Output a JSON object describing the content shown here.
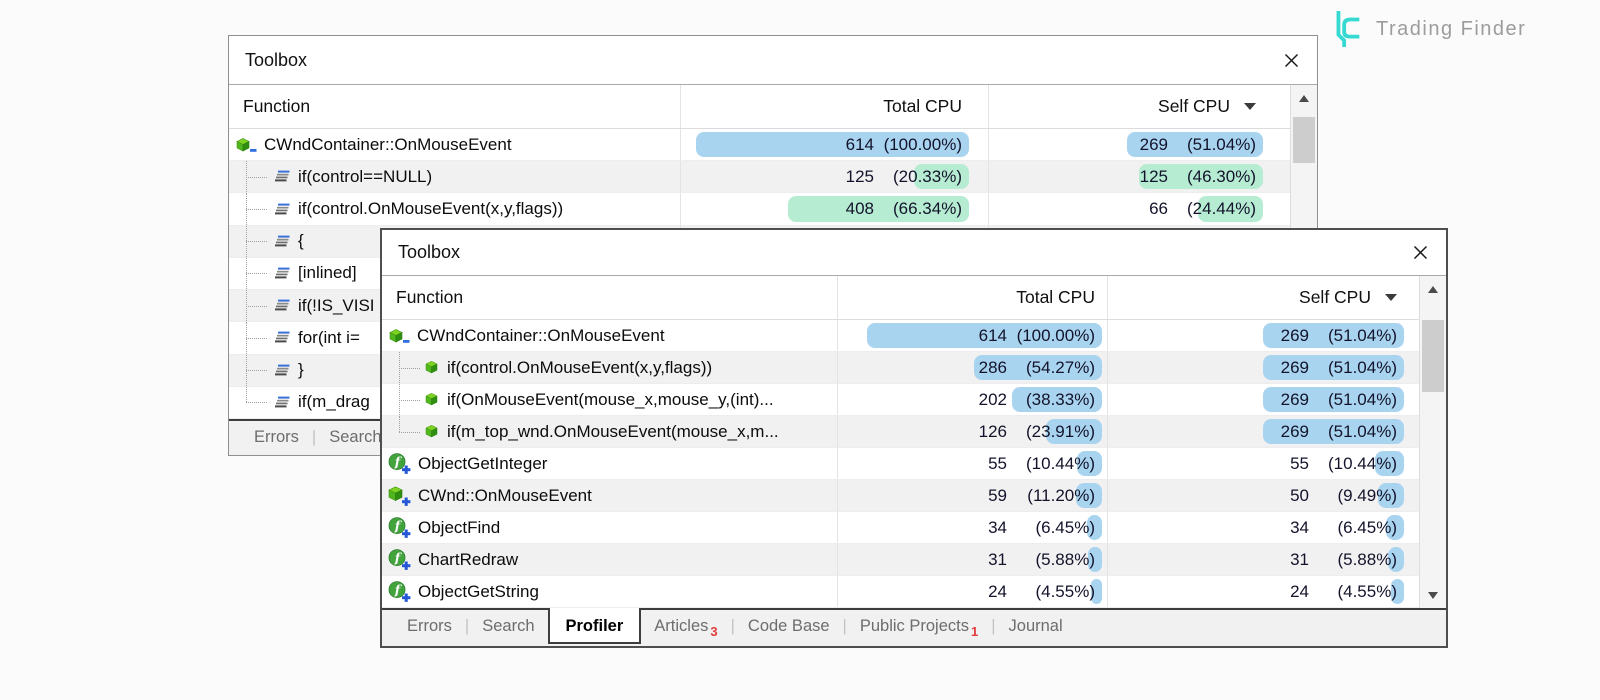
{
  "brand": {
    "name": "Trading Finder",
    "color": "#35d9d2"
  },
  "colors": {
    "bar_blue": "#a9d4ef",
    "bar_green": "#b5ecd2",
    "badge_red": "#e23b3b"
  },
  "windows": {
    "back": {
      "title": "Toolbox",
      "columns": {
        "function": "Function",
        "total_cpu": "Total CPU",
        "self_cpu": "Self CPU"
      },
      "sorted_by": "self_cpu",
      "rows": [
        {
          "icon": "class-cube",
          "label": "CWndContainer::OnMouseEvent",
          "total": {
            "count": "614",
            "pct_text": "(100.00%)",
            "pct": 100,
            "color": "blue"
          },
          "self": {
            "count": "269",
            "pct_text": "(51.04%)",
            "pct": 51.04,
            "color": "blue"
          }
        },
        {
          "icon": "code-lines",
          "child": true,
          "label": "if(control==NULL)",
          "total": {
            "count": "125",
            "pct_text": "(20.33%)",
            "pct": 20.33,
            "color": "green"
          },
          "self": {
            "count": "125",
            "pct_text": "(46.30%)",
            "pct": 46.3,
            "color": "green"
          }
        },
        {
          "icon": "code-lines",
          "child": true,
          "label": "if(control.OnMouseEvent(x,y,flags))",
          "total": {
            "count": "408",
            "pct_text": "(66.34%)",
            "pct": 66.34,
            "color": "green"
          },
          "self": {
            "count": "66",
            "pct_text": "(24.44%)",
            "pct": 24.44,
            "color": "green"
          }
        },
        {
          "icon": "code-lines",
          "child": true,
          "label": "{"
        },
        {
          "icon": "code-lines",
          "child": true,
          "label": "[inlined]"
        },
        {
          "icon": "code-lines",
          "child": true,
          "label": "if(!IS_VISI"
        },
        {
          "icon": "code-lines",
          "child": true,
          "label": "for(int i="
        },
        {
          "icon": "code-lines",
          "child": true,
          "label": "}"
        },
        {
          "icon": "code-lines",
          "child": true,
          "last": true,
          "label": "if(m_drag"
        }
      ],
      "tabs": [
        {
          "label": "Errors"
        },
        {
          "label": "Search"
        }
      ]
    },
    "front": {
      "title": "Toolbox",
      "columns": {
        "function": "Function",
        "total_cpu": "Total CPU",
        "self_cpu": "Self CPU"
      },
      "sorted_by": "self_cpu",
      "rows": [
        {
          "icon": "class-cube",
          "label": "CWndContainer::OnMouseEvent",
          "total": {
            "count": "614",
            "pct_text": "(100.00%)",
            "pct": 100,
            "color": "blue"
          },
          "self": {
            "count": "269",
            "pct_text": "(51.04%)",
            "pct": 51.04,
            "color": "blue"
          }
        },
        {
          "icon": "cube-small",
          "child": true,
          "label": "if(control.OnMouseEvent(x,y,flags))",
          "total": {
            "count": "286",
            "pct_text": "(54.27%)",
            "pct": 54.27,
            "color": "blue"
          },
          "self": {
            "count": "269",
            "pct_text": "(51.04%)",
            "pct": 51.04,
            "color": "blue"
          }
        },
        {
          "icon": "cube-small",
          "child": true,
          "label": "if(OnMouseEvent(mouse_x,mouse_y,(int)...",
          "total": {
            "count": "202",
            "pct_text": "(38.33%)",
            "pct": 38.33,
            "color": "blue"
          },
          "self": {
            "count": "269",
            "pct_text": "(51.04%)",
            "pct": 51.04,
            "color": "blue"
          }
        },
        {
          "icon": "cube-small",
          "child": true,
          "last": true,
          "label": "if(m_top_wnd.OnMouseEvent(mouse_x,m...",
          "total": {
            "count": "126",
            "pct_text": "(23.91%)",
            "pct": 23.91,
            "color": "blue"
          },
          "self": {
            "count": "269",
            "pct_text": "(51.04%)",
            "pct": 51.04,
            "color": "blue"
          }
        },
        {
          "icon": "function-add",
          "label": "ObjectGetInteger",
          "total": {
            "count": "55",
            "pct_text": "(10.44%)",
            "pct": 10.44,
            "color": "blue"
          },
          "self": {
            "count": "55",
            "pct_text": "(10.44%)",
            "pct": 10.44,
            "color": "blue"
          }
        },
        {
          "icon": "cube-add",
          "label": "CWnd::OnMouseEvent",
          "total": {
            "count": "59",
            "pct_text": "(11.20%)",
            "pct": 11.2,
            "color": "blue"
          },
          "self": {
            "count": "50",
            "pct_text": "(9.49%)",
            "pct": 9.49,
            "color": "blue"
          }
        },
        {
          "icon": "function-add",
          "label": "ObjectFind",
          "total": {
            "count": "34",
            "pct_text": "(6.45%)",
            "pct": 6.45,
            "color": "blue"
          },
          "self": {
            "count": "34",
            "pct_text": "(6.45%)",
            "pct": 6.45,
            "color": "blue"
          }
        },
        {
          "icon": "function-add",
          "label": "ChartRedraw",
          "total": {
            "count": "31",
            "pct_text": "(5.88%)",
            "pct": 5.88,
            "color": "blue"
          },
          "self": {
            "count": "31",
            "pct_text": "(5.88%)",
            "pct": 5.88,
            "color": "blue"
          }
        },
        {
          "icon": "function-add",
          "label": "ObjectGetString",
          "total": {
            "count": "24",
            "pct_text": "(4.55%)",
            "pct": 4.55,
            "color": "blue"
          },
          "self": {
            "count": "24",
            "pct_text": "(4.55%)",
            "pct": 4.55,
            "color": "blue"
          }
        }
      ],
      "tabs": [
        {
          "label": "Errors"
        },
        {
          "label": "Search"
        },
        {
          "label": "Profiler",
          "active": true
        },
        {
          "label": "Articles",
          "badge": "3"
        },
        {
          "label": "Code Base"
        },
        {
          "label": "Public Projects",
          "badge": "1"
        },
        {
          "label": "Journal"
        }
      ]
    }
  }
}
